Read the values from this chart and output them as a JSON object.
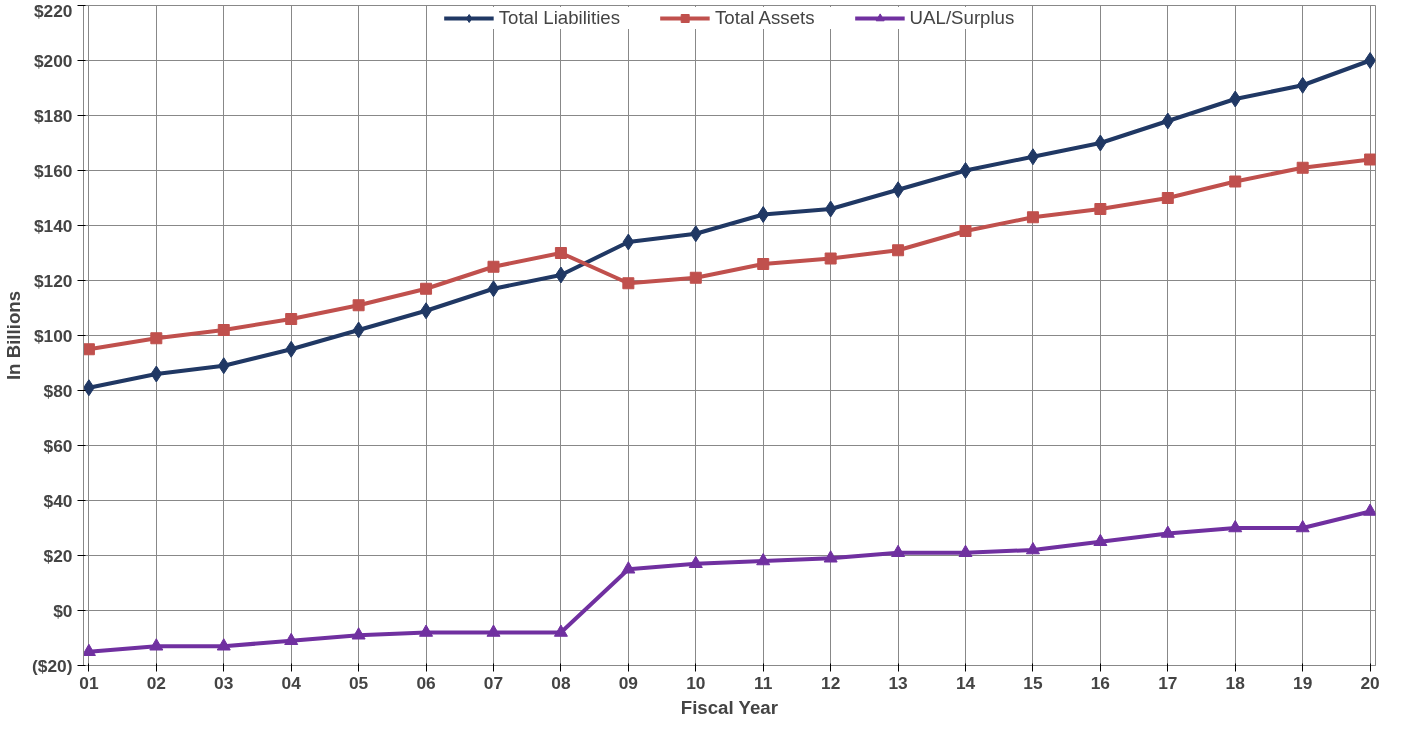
{
  "chart_data": {
    "type": "line",
    "xlabel": "Fiscal Year",
    "ylabel": "In Billions",
    "categories": [
      "01",
      "02",
      "03",
      "04",
      "05",
      "06",
      "07",
      "08",
      "09",
      "10",
      "11",
      "12",
      "13",
      "14",
      "15",
      "16",
      "17",
      "18",
      "19",
      "20"
    ],
    "series": [
      {
        "name": "Total Liabilities",
        "color": "#203864",
        "marker": "diamond",
        "values": [
          81,
          86,
          89,
          95,
          102,
          109,
          117,
          122,
          134,
          137,
          144,
          146,
          153,
          160,
          165,
          170,
          178,
          186,
          191,
          200
        ]
      },
      {
        "name": "Total Assets",
        "color": "#c0504d",
        "marker": "square",
        "values": [
          95,
          99,
          102,
          106,
          111,
          117,
          125,
          130,
          119,
          121,
          126,
          128,
          131,
          138,
          143,
          146,
          150,
          156,
          161,
          164
        ]
      },
      {
        "name": "UAL/Surplus",
        "color": "#7030a0",
        "marker": "triangle",
        "values": [
          -15,
          -13,
          -13,
          -11,
          -9,
          -8,
          -8,
          -8,
          15,
          17,
          18,
          19,
          21,
          21,
          22,
          25,
          28,
          30,
          30,
          36
        ]
      }
    ],
    "ylim": [
      -20,
      220
    ],
    "yticks": [
      {
        "value": -20,
        "label": "($20)"
      },
      {
        "value": 0,
        "label": "$0"
      },
      {
        "value": 20,
        "label": "$20"
      },
      {
        "value": 40,
        "label": "$40"
      },
      {
        "value": 60,
        "label": "$60"
      },
      {
        "value": 80,
        "label": "$80"
      },
      {
        "value": 100,
        "label": "$100"
      },
      {
        "value": 120,
        "label": "$120"
      },
      {
        "value": 140,
        "label": "$140"
      },
      {
        "value": 160,
        "label": "$160"
      },
      {
        "value": 180,
        "label": "$180"
      },
      {
        "value": 200,
        "label": "$200"
      },
      {
        "value": 220,
        "label": "$220"
      }
    ],
    "grid": true,
    "legend": "top",
    "line_style": "solid"
  }
}
